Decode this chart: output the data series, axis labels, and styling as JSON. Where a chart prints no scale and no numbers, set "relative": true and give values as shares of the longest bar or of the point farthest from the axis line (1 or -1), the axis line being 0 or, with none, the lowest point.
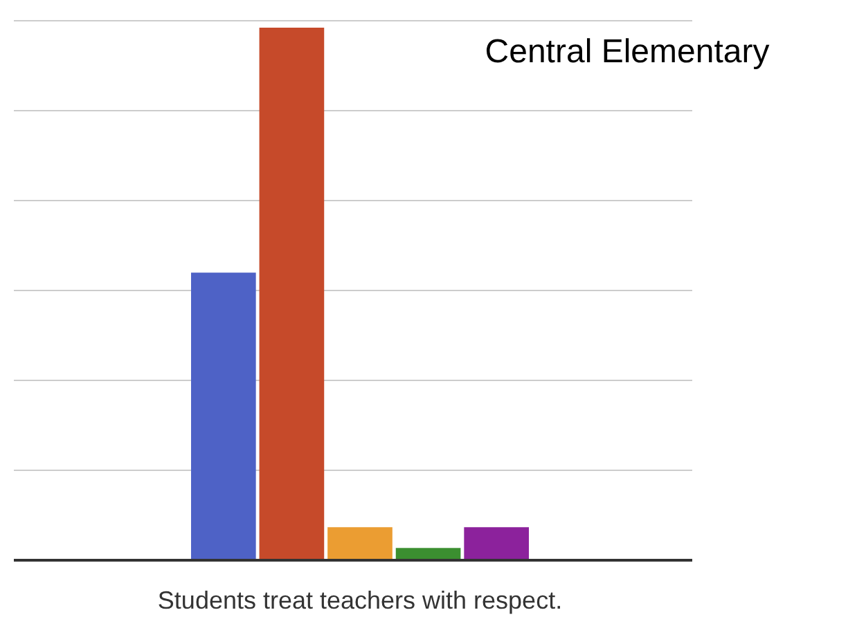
{
  "chart_data": {
    "type": "bar",
    "title": "Central Elementary",
    "xlabel": "Students treat teachers with respect.",
    "categories": [
      null,
      null,
      null,
      null,
      null
    ],
    "relative": true,
    "grid": true,
    "values": [
      0.54,
      1,
      0.062,
      0.023,
      0.062
    ],
    "colors": [
      "#4e62c6",
      "#c64a2a",
      "#eb9d32",
      "#3b8f30",
      "#8c229c"
    ]
  }
}
